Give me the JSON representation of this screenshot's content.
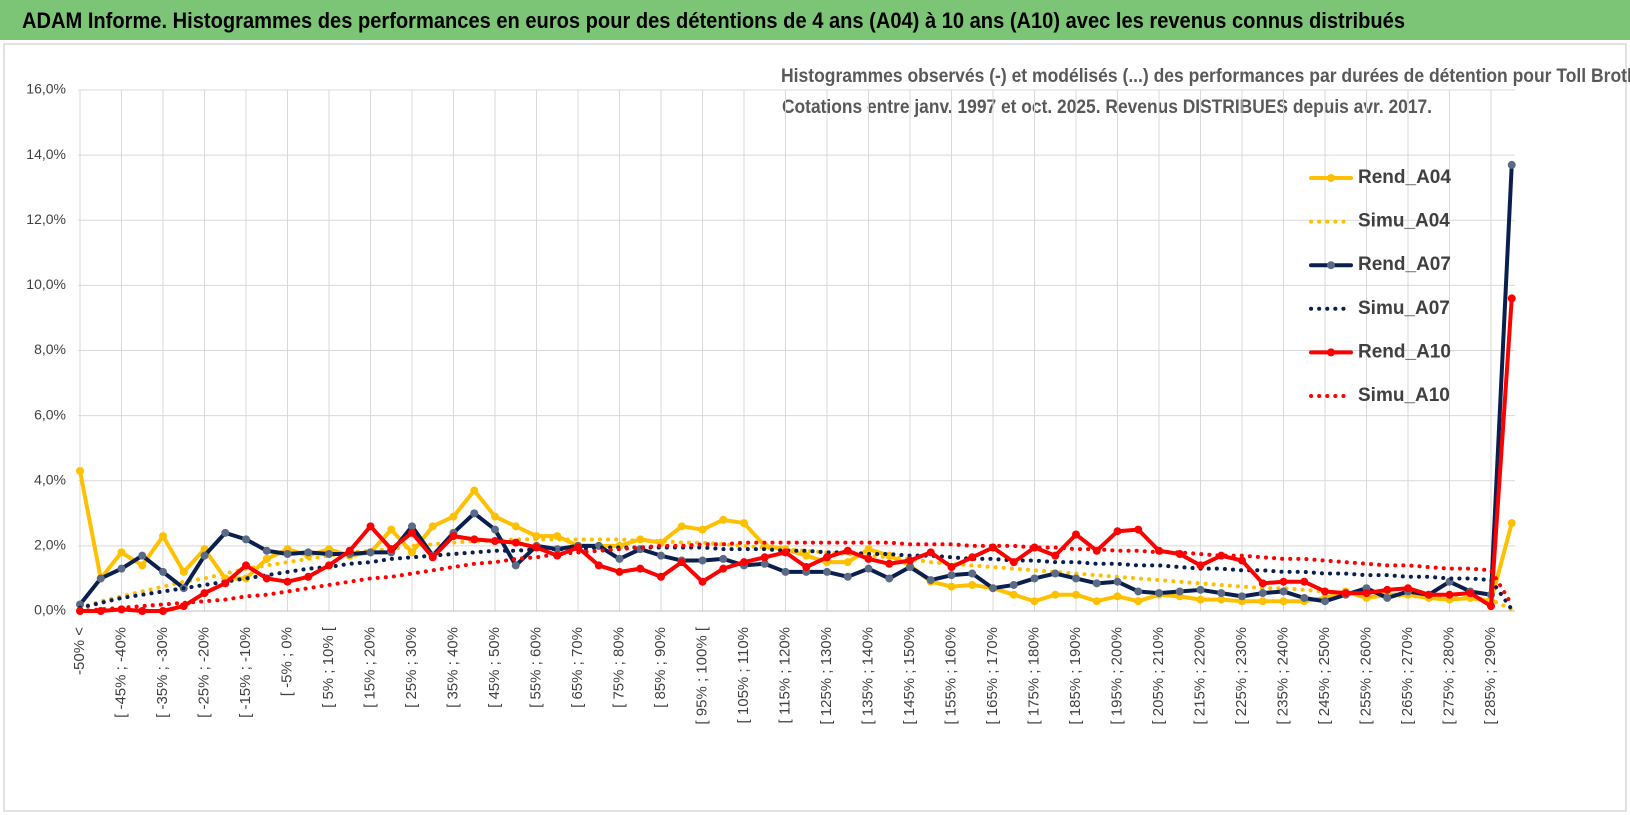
{
  "chart_data": {
    "type": "line",
    "header": "ADAM Informe. Histogrammes des performances en euros pour des détentions de 4 ans (A04) à 10 ans (A10) avec les revenus connus distribués",
    "title": "Histogrammes observés (-) et modélisés (...) des performances par durées de détention pour Toll Brothers Inc.",
    "subtitle": "Cotations entre janv. 1997 et oct. 2025. Revenus DISTRIBUES depuis avr. 2017.",
    "categories": [
      "-50% <",
      null,
      "[ -45% ; -40%",
      null,
      "[ -35% ; -30%",
      null,
      "[ -25% ; -20%",
      null,
      "[ -15% ; -10%",
      null,
      "[ -5% ; 0%",
      null,
      "[ 5% ; 10% [",
      null,
      "[ 15% ; 20%",
      null,
      "[ 25% ; 30%",
      null,
      "[ 35% ; 40%",
      null,
      "[ 45% ; 50%",
      null,
      "[ 55% ; 60%",
      null,
      "[ 65% ; 70%",
      null,
      "[ 75% ; 80%",
      null,
      "[ 85% ; 90%",
      null,
      "[ 95% ; 100% [",
      null,
      "[ 105% ; 110%",
      null,
      "[ 115% ; 120%",
      null,
      "[ 125% ; 130%",
      null,
      "[ 135% ; 140%",
      null,
      "[ 145% ; 150%",
      null,
      "[ 155% ; 160%",
      null,
      "[ 165% ; 170%",
      null,
      "[ 175% ; 180%",
      null,
      "[ 185% ; 190%",
      null,
      "[ 195% ; 200%",
      null,
      "[ 205% ; 210%",
      null,
      "[ 215% ; 220%",
      null,
      "[ 225% ; 230%",
      null,
      "[ 235% ; 240%",
      null,
      "[ 245% ; 250%",
      null,
      "[ 255% ; 260%",
      null,
      "[ 265% ; 270%",
      null,
      "[ 275% ; 280%",
      null,
      "[ 285% ; 290%",
      null
    ],
    "ylim": [
      0,
      16
    ],
    "yticks": [
      {
        "value": 0,
        "label": "0,0%"
      },
      {
        "value": 2,
        "label": "2,0%"
      },
      {
        "value": 4,
        "label": "4,0%"
      },
      {
        "value": 6,
        "label": "6,0%"
      },
      {
        "value": 8,
        "label": "8,0%"
      },
      {
        "value": 10,
        "label": "10,0%"
      },
      {
        "value": 12,
        "label": "12,0%"
      },
      {
        "value": 14,
        "label": "14,0%"
      },
      {
        "value": 16,
        "label": "16,0%"
      }
    ],
    "grid": true,
    "legend": "right",
    "series": [
      {
        "name": "Rend_A04",
        "color": "#ffc000",
        "style": "solid",
        "markers": true,
        "marker_color": "#ffc000",
        "values": [
          4.3,
          1.0,
          1.8,
          1.4,
          2.3,
          1.2,
          1.9,
          1.0,
          1.0,
          1.6,
          1.9,
          1.7,
          1.9,
          1.7,
          1.8,
          2.5,
          1.8,
          2.6,
          2.9,
          3.7,
          2.9,
          2.6,
          2.3,
          2.3,
          2.0,
          2.0,
          2.0,
          2.2,
          2.1,
          2.6,
          2.5,
          2.8,
          2.7,
          2.0,
          1.9,
          1.7,
          1.5,
          1.5,
          1.9,
          1.7,
          1.4,
          0.9,
          0.75,
          0.8,
          0.7,
          0.5,
          0.3,
          0.5,
          0.5,
          0.3,
          0.45,
          0.3,
          0.5,
          0.45,
          0.35,
          0.35,
          0.3,
          0.3,
          0.3,
          0.3,
          0.4,
          0.6,
          0.4,
          0.5,
          0.5,
          0.4,
          0.35,
          0.4,
          0.3,
          2.7
        ]
      },
      {
        "name": "Simu_A04",
        "color": "#ffc000",
        "style": "dotted",
        "markers": false,
        "values": [
          0.1,
          0.3,
          0.45,
          0.6,
          0.75,
          0.9,
          1.0,
          1.15,
          1.3,
          1.4,
          1.5,
          1.6,
          1.7,
          1.8,
          1.85,
          1.9,
          2.0,
          2.05,
          2.1,
          2.15,
          2.15,
          2.2,
          2.2,
          2.2,
          2.2,
          2.2,
          2.2,
          2.15,
          2.15,
          2.1,
          2.1,
          2.05,
          2.0,
          1.95,
          1.9,
          1.85,
          1.8,
          1.75,
          1.7,
          1.65,
          1.6,
          1.5,
          1.45,
          1.4,
          1.35,
          1.3,
          1.25,
          1.2,
          1.15,
          1.1,
          1.05,
          1.0,
          0.95,
          0.9,
          0.85,
          0.8,
          0.75,
          0.7,
          0.7,
          0.65,
          0.6,
          0.55,
          0.55,
          0.5,
          0.45,
          0.45,
          0.4,
          0.4,
          0.35,
          0.05
        ]
      },
      {
        "name": "Rend_A07",
        "color": "#0b1f4f",
        "style": "solid",
        "markers": true,
        "marker_color": "#5b6b85",
        "values": [
          0.2,
          1.0,
          1.3,
          1.7,
          1.2,
          0.7,
          1.7,
          2.4,
          2.2,
          1.85,
          1.75,
          1.8,
          1.75,
          1.75,
          1.8,
          1.8,
          2.6,
          1.7,
          2.4,
          3.0,
          2.5,
          1.4,
          2.0,
          1.9,
          2.0,
          2.0,
          1.6,
          1.9,
          1.7,
          1.55,
          1.55,
          1.6,
          1.4,
          1.45,
          1.2,
          1.2,
          1.2,
          1.05,
          1.3,
          1.0,
          1.35,
          0.95,
          1.1,
          1.15,
          0.7,
          0.8,
          1.0,
          1.15,
          1.0,
          0.85,
          0.9,
          0.6,
          0.55,
          0.6,
          0.65,
          0.55,
          0.45,
          0.55,
          0.6,
          0.4,
          0.3,
          0.5,
          0.7,
          0.4,
          0.6,
          0.5,
          0.9,
          0.6,
          0.5,
          13.7
        ]
      },
      {
        "name": "Simu_A07",
        "color": "#0b1f4f",
        "style": "dotted",
        "markers": false,
        "values": [
          0.1,
          0.25,
          0.4,
          0.5,
          0.6,
          0.7,
          0.8,
          0.9,
          1.0,
          1.1,
          1.2,
          1.3,
          1.35,
          1.45,
          1.5,
          1.6,
          1.65,
          1.7,
          1.75,
          1.8,
          1.85,
          1.85,
          1.9,
          1.9,
          1.9,
          1.95,
          1.95,
          1.95,
          1.95,
          1.95,
          1.95,
          1.9,
          1.9,
          1.9,
          1.85,
          1.85,
          1.8,
          1.8,
          1.75,
          1.75,
          1.7,
          1.7,
          1.65,
          1.6,
          1.6,
          1.55,
          1.55,
          1.5,
          1.5,
          1.45,
          1.45,
          1.4,
          1.4,
          1.35,
          1.3,
          1.3,
          1.25,
          1.25,
          1.2,
          1.2,
          1.15,
          1.15,
          1.1,
          1.1,
          1.05,
          1.05,
          1.0,
          1.0,
          0.95,
          0.05
        ]
      },
      {
        "name": "Rend_A10",
        "color": "#ff0000",
        "style": "solid",
        "markers": true,
        "marker_color": "#ff0000",
        "values": [
          0.0,
          0.0,
          0.05,
          0.0,
          0.0,
          0.15,
          0.55,
          0.85,
          1.4,
          1.0,
          0.9,
          1.05,
          1.4,
          1.85,
          2.6,
          1.9,
          2.4,
          1.65,
          2.3,
          2.2,
          2.15,
          2.1,
          1.95,
          1.7,
          1.95,
          1.4,
          1.2,
          1.3,
          1.05,
          1.5,
          0.9,
          1.3,
          1.5,
          1.65,
          1.8,
          1.35,
          1.65,
          1.85,
          1.6,
          1.45,
          1.55,
          1.8,
          1.35,
          1.65,
          1.95,
          1.5,
          1.95,
          1.7,
          2.35,
          1.85,
          2.45,
          2.5,
          1.85,
          1.75,
          1.4,
          1.7,
          1.55,
          0.85,
          0.9,
          0.9,
          0.6,
          0.55,
          0.55,
          0.65,
          0.7,
          0.5,
          0.5,
          0.55,
          0.15,
          9.6
        ]
      },
      {
        "name": "Simu_A10",
        "color": "#ff0000",
        "style": "dotted",
        "markers": false,
        "values": [
          0.0,
          0.05,
          0.1,
          0.15,
          0.2,
          0.25,
          0.3,
          0.35,
          0.45,
          0.5,
          0.6,
          0.7,
          0.8,
          0.9,
          1.0,
          1.05,
          1.15,
          1.25,
          1.35,
          1.45,
          1.5,
          1.6,
          1.65,
          1.75,
          1.8,
          1.85,
          1.9,
          1.95,
          2.0,
          2.0,
          2.05,
          2.05,
          2.1,
          2.1,
          2.1,
          2.1,
          2.1,
          2.1,
          2.1,
          2.1,
          2.05,
          2.05,
          2.05,
          2.0,
          2.0,
          2.0,
          1.95,
          1.95,
          1.9,
          1.9,
          1.85,
          1.85,
          1.8,
          1.8,
          1.75,
          1.7,
          1.7,
          1.65,
          1.6,
          1.6,
          1.55,
          1.5,
          1.45,
          1.4,
          1.4,
          1.35,
          1.3,
          1.3,
          1.25,
          0.2
        ]
      }
    ]
  }
}
